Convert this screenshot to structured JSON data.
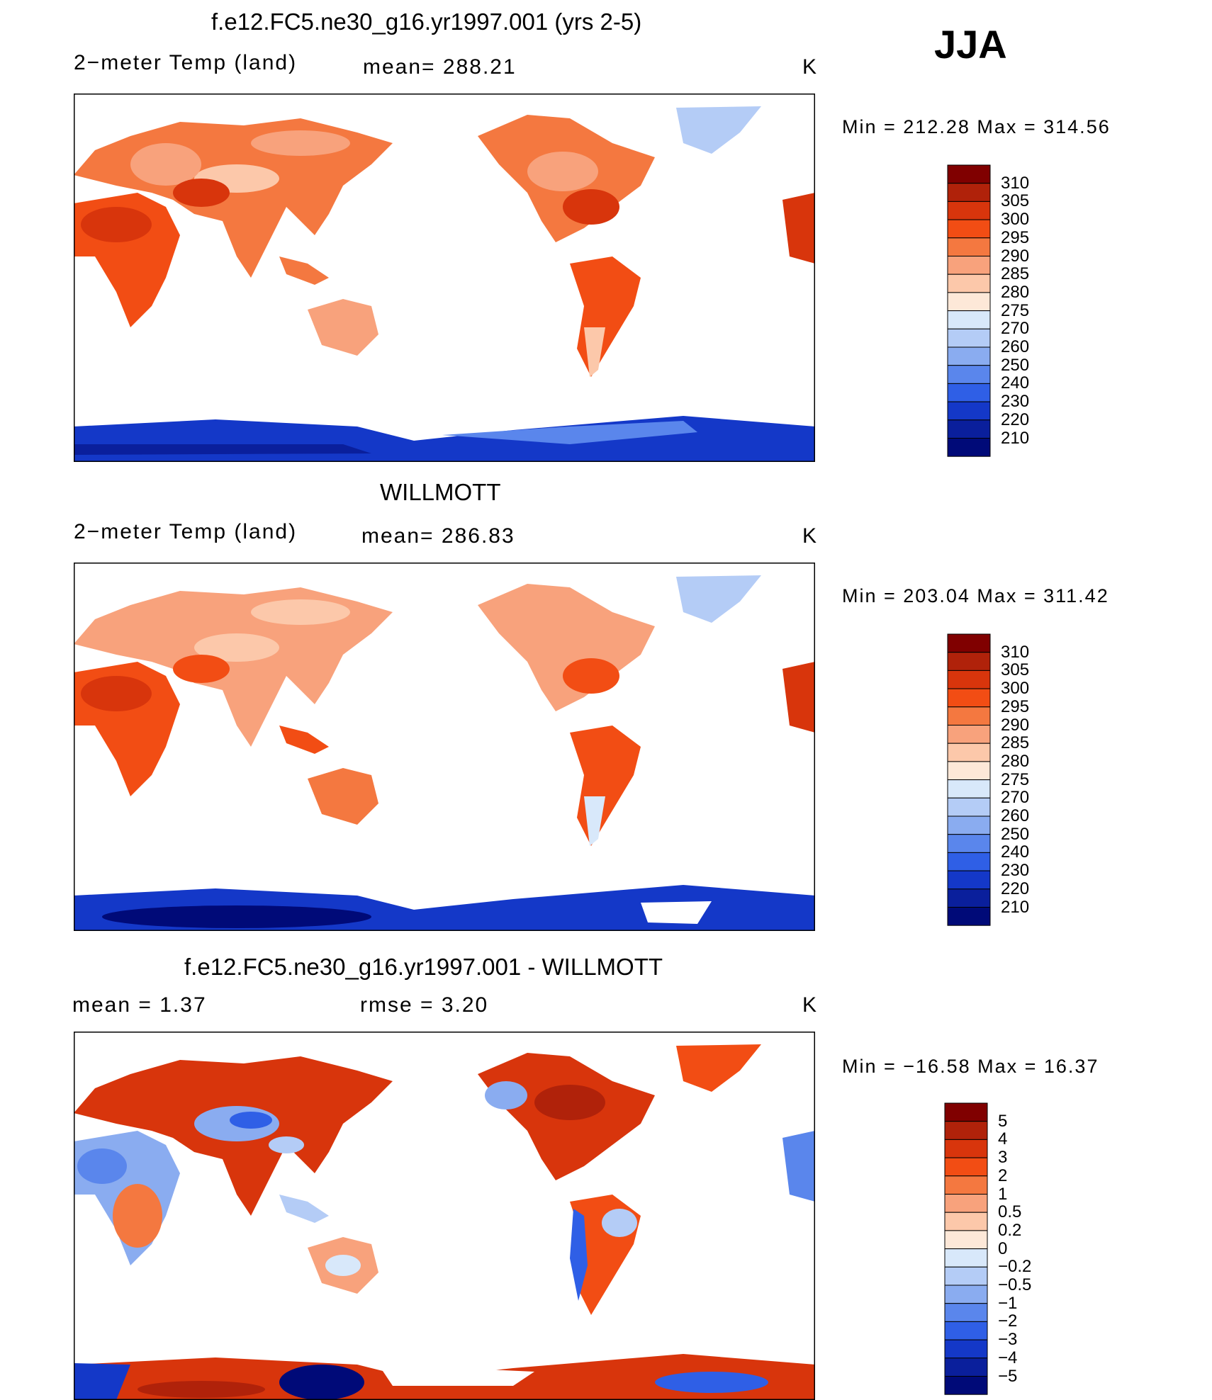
{
  "season": "JJA",
  "panels": [
    {
      "title": "f.e12.FC5.ne30_g16.yr1997.001 (yrs 2-5)",
      "left_label": "2−meter Temp (land)",
      "mid_label": "mean=  288.21",
      "units": "K",
      "minmax": "Min  =  212.28  Max  =  314.56",
      "levels": [
        "310",
        "305",
        "300",
        "295",
        "290",
        "285",
        "280",
        "275",
        "270",
        "260",
        "250",
        "240",
        "230",
        "220",
        "210"
      ],
      "colors": [
        "#800000",
        "#b0220a",
        "#d8350c",
        "#f24d14",
        "#f47840",
        "#f8a27c",
        "#fcc8aa",
        "#fde8d8",
        "#d8e8fa",
        "#b4ccf6",
        "#8aacf0",
        "#5a86ec",
        "#2f5fe6",
        "#1438c8",
        "#0a1f9c",
        "#000a78"
      ]
    },
    {
      "title": "WILLMOTT",
      "left_label": "2−meter Temp (land)",
      "mid_label": "mean=  286.83",
      "units": "K",
      "minmax": "Min  =  203.04  Max  =  311.42",
      "levels": [
        "310",
        "305",
        "300",
        "295",
        "290",
        "285",
        "280",
        "275",
        "270",
        "260",
        "250",
        "240",
        "230",
        "220",
        "210"
      ],
      "colors": [
        "#800000",
        "#b0220a",
        "#d8350c",
        "#f24d14",
        "#f47840",
        "#f8a27c",
        "#fcc8aa",
        "#fde8d8",
        "#d8e8fa",
        "#b4ccf6",
        "#8aacf0",
        "#5a86ec",
        "#2f5fe6",
        "#1438c8",
        "#0a1f9c",
        "#000a78"
      ]
    },
    {
      "title": "f.e12.FC5.ne30_g16.yr1997.001 - WILLMOTT",
      "left_label": "mean  =      1.37",
      "mid_label": "rmse  =      3.20",
      "units": "K",
      "minmax": "Min  =  −16.58  Max  =    16.37",
      "levels": [
        "5",
        "4",
        "3",
        "2",
        "1",
        "0.5",
        "0.2",
        "0",
        "−0.2",
        "−0.5",
        "−1",
        "−2",
        "−3",
        "−4",
        "−5"
      ],
      "colors": [
        "#800000",
        "#b0220a",
        "#d8350c",
        "#f24d14",
        "#f47840",
        "#f8a27c",
        "#fcc8aa",
        "#fde8d8",
        "#d8e8fa",
        "#b4ccf6",
        "#8aacf0",
        "#5a86ec",
        "#2f5fe6",
        "#1438c8",
        "#0a1f9c",
        "#000a78"
      ]
    }
  ]
}
